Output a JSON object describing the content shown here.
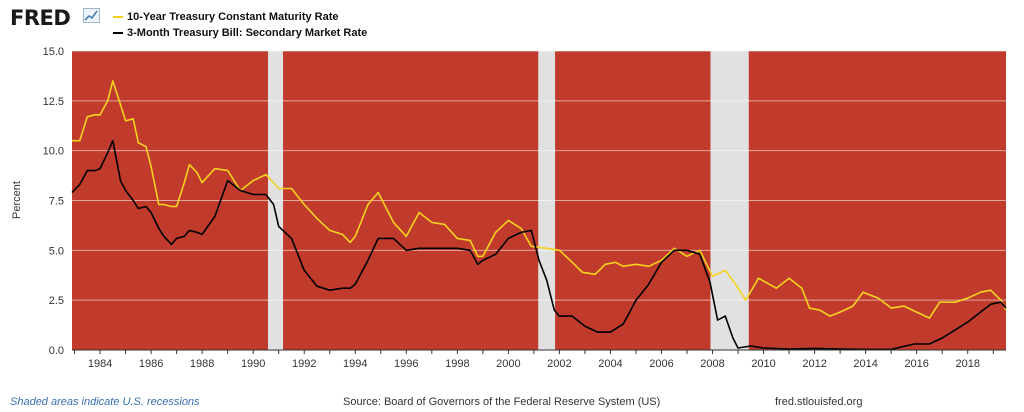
{
  "header": {
    "logo_text": "FRED",
    "logo_icon": "line-chart-icon"
  },
  "footer": {
    "recession_note": "Shaded areas indicate U.S. recessions",
    "source": "Source: Board of Governors of the Federal Reserve System (US)",
    "url": "fred.stlouisfed.org"
  },
  "colors": {
    "plot_background": "#c03b2b",
    "recession_shade": "#e1e1e1",
    "series_10y": "#f5d220",
    "series_3m": "#000000"
  },
  "chart_data": {
    "type": "line",
    "title": "",
    "xlabel": "",
    "ylabel": "Percent",
    "ylim": [
      0,
      15
    ],
    "xlim": [
      1982.9,
      2019.5
    ],
    "y_ticks": [
      "0.0",
      "2.5",
      "5.0",
      "7.5",
      "10.0",
      "12.5",
      "15.0"
    ],
    "x_ticks": [
      "1984",
      "1986",
      "1988",
      "1990",
      "1992",
      "1994",
      "1996",
      "1998",
      "2000",
      "2002",
      "2004",
      "2006",
      "2008",
      "2010",
      "2012",
      "2014",
      "2016",
      "2018"
    ],
    "grid": true,
    "legend_position": "top-left",
    "recessions": [
      [
        1990.58,
        1991.17
      ],
      [
        2001.17,
        2001.83
      ],
      [
        2007.92,
        2009.42
      ]
    ],
    "series": [
      {
        "name": "10-Year Treasury Constant Maturity Rate",
        "x": [
          1982.9,
          1983.2,
          1983.5,
          1983.8,
          1984.0,
          1984.3,
          1984.5,
          1984.8,
          1985.0,
          1985.3,
          1985.5,
          1985.8,
          1986.0,
          1986.3,
          1986.5,
          1986.8,
          1987.0,
          1987.3,
          1987.5,
          1987.8,
          1988.0,
          1988.5,
          1989.0,
          1989.5,
          1990.0,
          1990.5,
          1990.8,
          1991.0,
          1991.5,
          1992.0,
          1992.5,
          1993.0,
          1993.5,
          1993.8,
          1994.0,
          1994.5,
          1994.9,
          1995.5,
          1996.0,
          1996.5,
          1997.0,
          1997.5,
          1998.0,
          1998.5,
          1998.8,
          1999.0,
          1999.5,
          2000.0,
          2000.5,
          2000.9,
          2001.5,
          2002.0,
          2002.5,
          2002.9,
          2003.4,
          2003.8,
          2004.2,
          2004.5,
          2005.0,
          2005.5,
          2006.0,
          2006.5,
          2007.0,
          2007.5,
          2008.0,
          2008.5,
          2008.9,
          2009.3,
          2009.8,
          2010.5,
          2011.0,
          2011.5,
          2011.8,
          2012.2,
          2012.6,
          2013.0,
          2013.5,
          2013.9,
          2014.5,
          2015.0,
          2015.5,
          2016.0,
          2016.5,
          2016.9,
          2017.5,
          2018.0,
          2018.5,
          2018.9,
          2019.3,
          2019.5
        ],
        "values": [
          10.5,
          10.5,
          11.7,
          11.8,
          11.8,
          12.5,
          13.5,
          12.3,
          11.5,
          11.6,
          10.4,
          10.2,
          9.2,
          7.3,
          7.3,
          7.2,
          7.2,
          8.4,
          9.3,
          8.9,
          8.4,
          9.1,
          9.0,
          8.0,
          8.5,
          8.8,
          8.4,
          8.1,
          8.1,
          7.3,
          6.6,
          6.0,
          5.8,
          5.4,
          5.7,
          7.3,
          7.9,
          6.4,
          5.7,
          6.9,
          6.4,
          6.3,
          5.6,
          5.5,
          4.7,
          4.7,
          5.9,
          6.5,
          6.1,
          5.2,
          5.1,
          5.0,
          4.4,
          3.9,
          3.8,
          4.3,
          4.4,
          4.2,
          4.3,
          4.2,
          4.5,
          5.1,
          4.7,
          5.0,
          3.7,
          4.0,
          3.3,
          2.5,
          3.6,
          3.1,
          3.6,
          3.1,
          2.1,
          2.0,
          1.7,
          1.9,
          2.2,
          2.9,
          2.6,
          2.1,
          2.2,
          1.9,
          1.6,
          2.4,
          2.4,
          2.6,
          2.9,
          3.0,
          2.5,
          2.0
        ]
      },
      {
        "name": "3-Month Treasury Bill: Secondary Market Rate",
        "x": [
          1982.9,
          1983.2,
          1983.5,
          1983.8,
          1984.0,
          1984.3,
          1984.5,
          1984.8,
          1985.0,
          1985.3,
          1985.5,
          1985.8,
          1986.0,
          1986.3,
          1986.5,
          1986.8,
          1987.0,
          1987.3,
          1987.5,
          1987.8,
          1988.0,
          1988.5,
          1989.0,
          1989.5,
          1990.0,
          1990.5,
          1990.8,
          1991.0,
          1991.5,
          1992.0,
          1992.5,
          1993.0,
          1993.5,
          1993.8,
          1994.0,
          1994.5,
          1994.9,
          1995.5,
          1996.0,
          1996.5,
          1997.0,
          1997.5,
          1998.0,
          1998.5,
          1998.8,
          1999.0,
          1999.5,
          2000.0,
          2000.5,
          2000.9,
          2001.2,
          2001.5,
          2001.8,
          2002.0,
          2002.5,
          2003.0,
          2003.5,
          2004.0,
          2004.5,
          2005.0,
          2005.5,
          2006.0,
          2006.5,
          2007.0,
          2007.5,
          2007.9,
          2008.2,
          2008.5,
          2008.8,
          2009.0,
          2009.5,
          2010.0,
          2011.0,
          2012.0,
          2013.0,
          2014.0,
          2015.0,
          2015.9,
          2016.5,
          2017.0,
          2017.5,
          2018.0,
          2018.5,
          2018.9,
          2019.3,
          2019.5
        ],
        "values": [
          7.9,
          8.3,
          9.0,
          9.0,
          9.1,
          9.9,
          10.5,
          8.5,
          8.0,
          7.5,
          7.1,
          7.2,
          6.9,
          6.1,
          5.7,
          5.3,
          5.6,
          5.7,
          6.0,
          5.9,
          5.8,
          6.7,
          8.5,
          8.0,
          7.8,
          7.8,
          7.3,
          6.2,
          5.6,
          4.0,
          3.2,
          3.0,
          3.1,
          3.1,
          3.3,
          4.5,
          5.6,
          5.6,
          5.0,
          5.1,
          5.1,
          5.1,
          5.1,
          5.0,
          4.3,
          4.5,
          4.8,
          5.6,
          5.9,
          6.0,
          4.5,
          3.5,
          2.0,
          1.7,
          1.7,
          1.2,
          0.9,
          0.9,
          1.3,
          2.5,
          3.3,
          4.4,
          5.0,
          5.0,
          4.8,
          3.4,
          1.5,
          1.7,
          0.6,
          0.1,
          0.2,
          0.1,
          0.05,
          0.08,
          0.05,
          0.03,
          0.03,
          0.3,
          0.3,
          0.6,
          1.0,
          1.4,
          1.9,
          2.3,
          2.4,
          2.1
        ]
      }
    ]
  }
}
